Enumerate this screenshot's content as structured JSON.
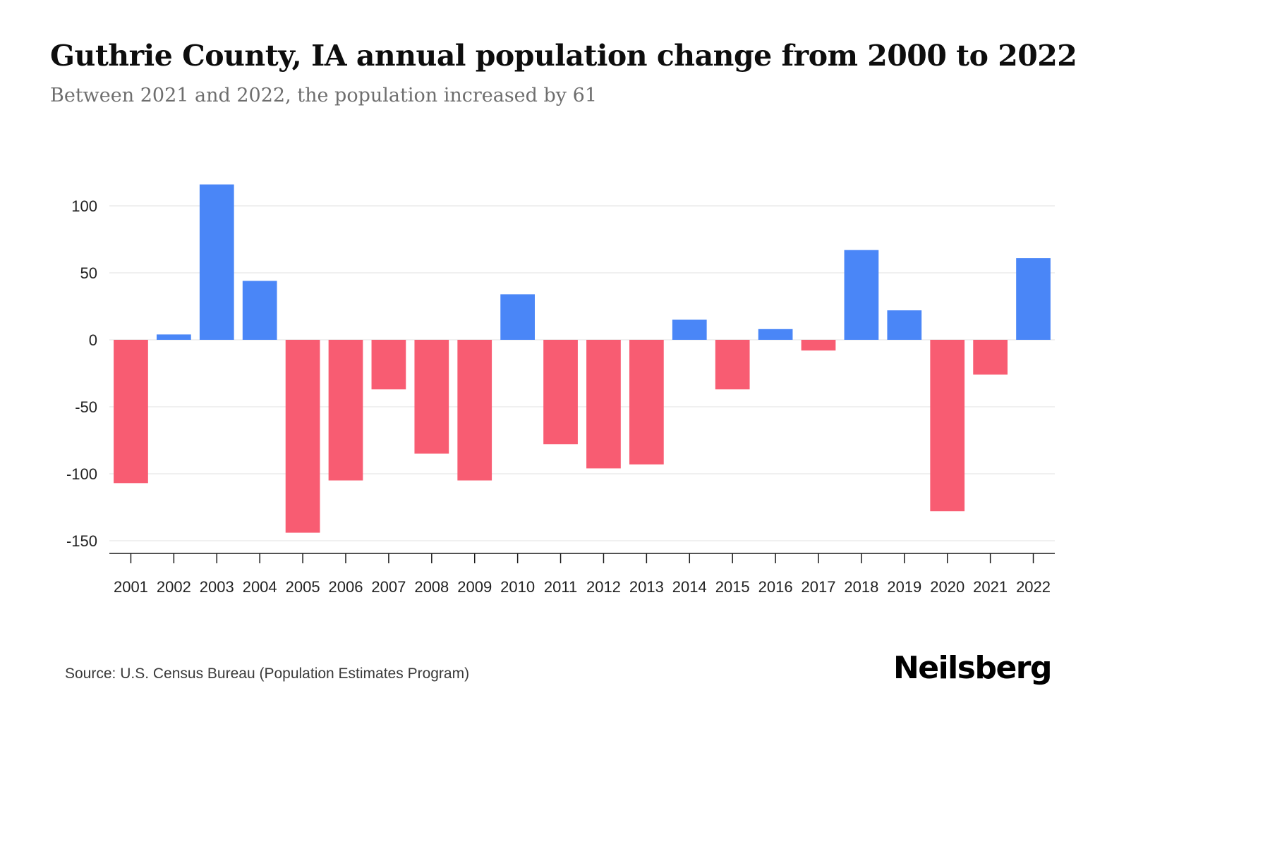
{
  "page": {
    "title": "Guthrie County, IA annual population change from 2000 to 2022",
    "subtitle": "Between 2021 and 2022, the population increased by 61",
    "source": "Source: U.S. Census Bureau (Population Estimates Program)",
    "brand": "Neilsberg"
  },
  "chart_data": {
    "type": "bar",
    "title": "Guthrie County, IA annual population change from 2000 to 2022",
    "subtitle": "Between 2021 and 2022, the population increased by 61",
    "categories": [
      "2001",
      "2002",
      "2003",
      "2004",
      "2005",
      "2006",
      "2007",
      "2008",
      "2009",
      "2010",
      "2011",
      "2012",
      "2013",
      "2014",
      "2015",
      "2016",
      "2017",
      "2018",
      "2019",
      "2020",
      "2021",
      "2022"
    ],
    "values": [
      -107,
      4,
      116,
      44,
      -144,
      -105,
      -37,
      -85,
      -105,
      34,
      -78,
      -96,
      -93,
      15,
      -37,
      8,
      -8,
      67,
      22,
      -128,
      -26,
      61
    ],
    "xlabel": "",
    "ylabel": "",
    "ylim": [
      -158,
      131
    ],
    "yticks": [
      100,
      50,
      0,
      -50,
      -100,
      -150
    ],
    "grid": true,
    "legend": "none",
    "colors": {
      "positive": "#4a86f7",
      "negative": "#f85c72",
      "gridline": "#ececec",
      "axis": "#1a1a1a",
      "tick_label": "#222222"
    }
  }
}
